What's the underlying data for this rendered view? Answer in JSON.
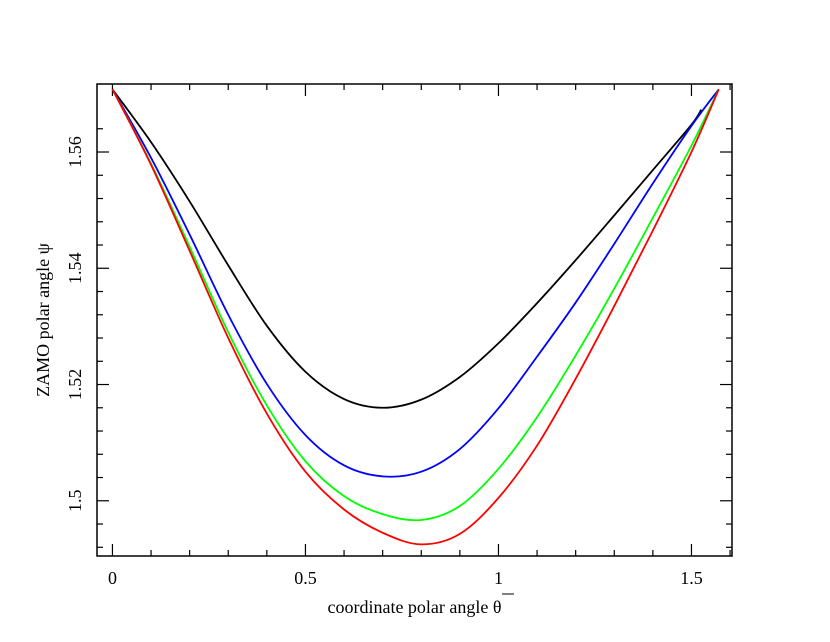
{
  "chart_data": {
    "type": "line",
    "xlabel": "coordinate polar angle θ",
    "ylabel": "ZAMO polar angle ψ",
    "xlim": [
      -0.04,
      1.605
    ],
    "ylim": [
      1.4905,
      1.5717
    ],
    "x_ticks": [
      {
        "value": 0,
        "label": "0"
      },
      {
        "value": 0.5,
        "label": "0.5"
      },
      {
        "value": 1,
        "label": "1"
      },
      {
        "value": 1.5,
        "label": "1.5"
      }
    ],
    "y_ticks": [
      {
        "value": 1.5,
        "label": "1.5"
      },
      {
        "value": 1.52,
        "label": "1.52"
      },
      {
        "value": 1.54,
        "label": "1.54"
      },
      {
        "value": 1.56,
        "label": "1.56"
      }
    ],
    "grid": false,
    "legend": "none",
    "series": [
      {
        "color": "#000000",
        "points": [
          [
            0,
            1.5708
          ],
          [
            0.1,
            1.5617
          ],
          [
            0.2,
            1.5515
          ],
          [
            0.3,
            1.5405
          ],
          [
            0.4,
            1.5301
          ],
          [
            0.5,
            1.5222
          ],
          [
            0.6,
            1.5175
          ],
          [
            0.7,
            1.516
          ],
          [
            0.8,
            1.5174
          ],
          [
            0.9,
            1.5213
          ],
          [
            1.0,
            1.5271
          ],
          [
            1.1,
            1.534
          ],
          [
            1.2,
            1.5414
          ],
          [
            1.3,
            1.5491
          ],
          [
            1.4,
            1.5569
          ],
          [
            1.5,
            1.5647
          ],
          [
            1.5254,
            1.5673
          ]
        ]
      },
      {
        "color": "#0000ff",
        "points": [
          [
            0,
            1.5708
          ],
          [
            0.1,
            1.559
          ],
          [
            0.2,
            1.5458
          ],
          [
            0.3,
            1.532
          ],
          [
            0.4,
            1.5201
          ],
          [
            0.5,
            1.5113
          ],
          [
            0.6,
            1.5061
          ],
          [
            0.7,
            1.5042
          ],
          [
            0.8,
            1.505
          ],
          [
            0.9,
            1.5089
          ],
          [
            1.0,
            1.5159
          ],
          [
            1.1,
            1.5248
          ],
          [
            1.2,
            1.5341
          ],
          [
            1.3,
            1.5442
          ],
          [
            1.4,
            1.5546
          ],
          [
            1.5,
            1.5645
          ],
          [
            1.5708,
            1.5708
          ]
        ]
      },
      {
        "color": "#00ff00",
        "points": [
          [
            0,
            1.5708
          ],
          [
            0.1,
            1.558
          ],
          [
            0.2,
            1.5437
          ],
          [
            0.3,
            1.529
          ],
          [
            0.4,
            1.5164
          ],
          [
            0.5,
            1.5068
          ],
          [
            0.6,
            1.5008
          ],
          [
            0.7,
            1.4977
          ],
          [
            0.8,
            1.4967
          ],
          [
            0.9,
            1.4991
          ],
          [
            1.0,
            1.5055
          ],
          [
            1.1,
            1.5144
          ],
          [
            1.2,
            1.525
          ],
          [
            1.3,
            1.5365
          ],
          [
            1.4,
            1.5487
          ],
          [
            1.5,
            1.5611
          ],
          [
            1.5708,
            1.5708
          ]
        ]
      },
      {
        "color": "#ff0000",
        "points": [
          [
            0,
            1.5708
          ],
          [
            0.1,
            1.5578
          ],
          [
            0.2,
            1.543
          ],
          [
            0.3,
            1.528
          ],
          [
            0.4,
            1.515
          ],
          [
            0.5,
            1.505
          ],
          [
            0.6,
            1.4985
          ],
          [
            0.7,
            1.4945
          ],
          [
            0.8,
            1.4925
          ],
          [
            0.9,
            1.4943
          ],
          [
            1.0,
            1.5005
          ],
          [
            1.1,
            1.5095
          ],
          [
            1.2,
            1.521
          ],
          [
            1.3,
            1.5335
          ],
          [
            1.4,
            1.5465
          ],
          [
            1.5,
            1.56
          ],
          [
            1.5708,
            1.5708
          ]
        ]
      }
    ]
  }
}
